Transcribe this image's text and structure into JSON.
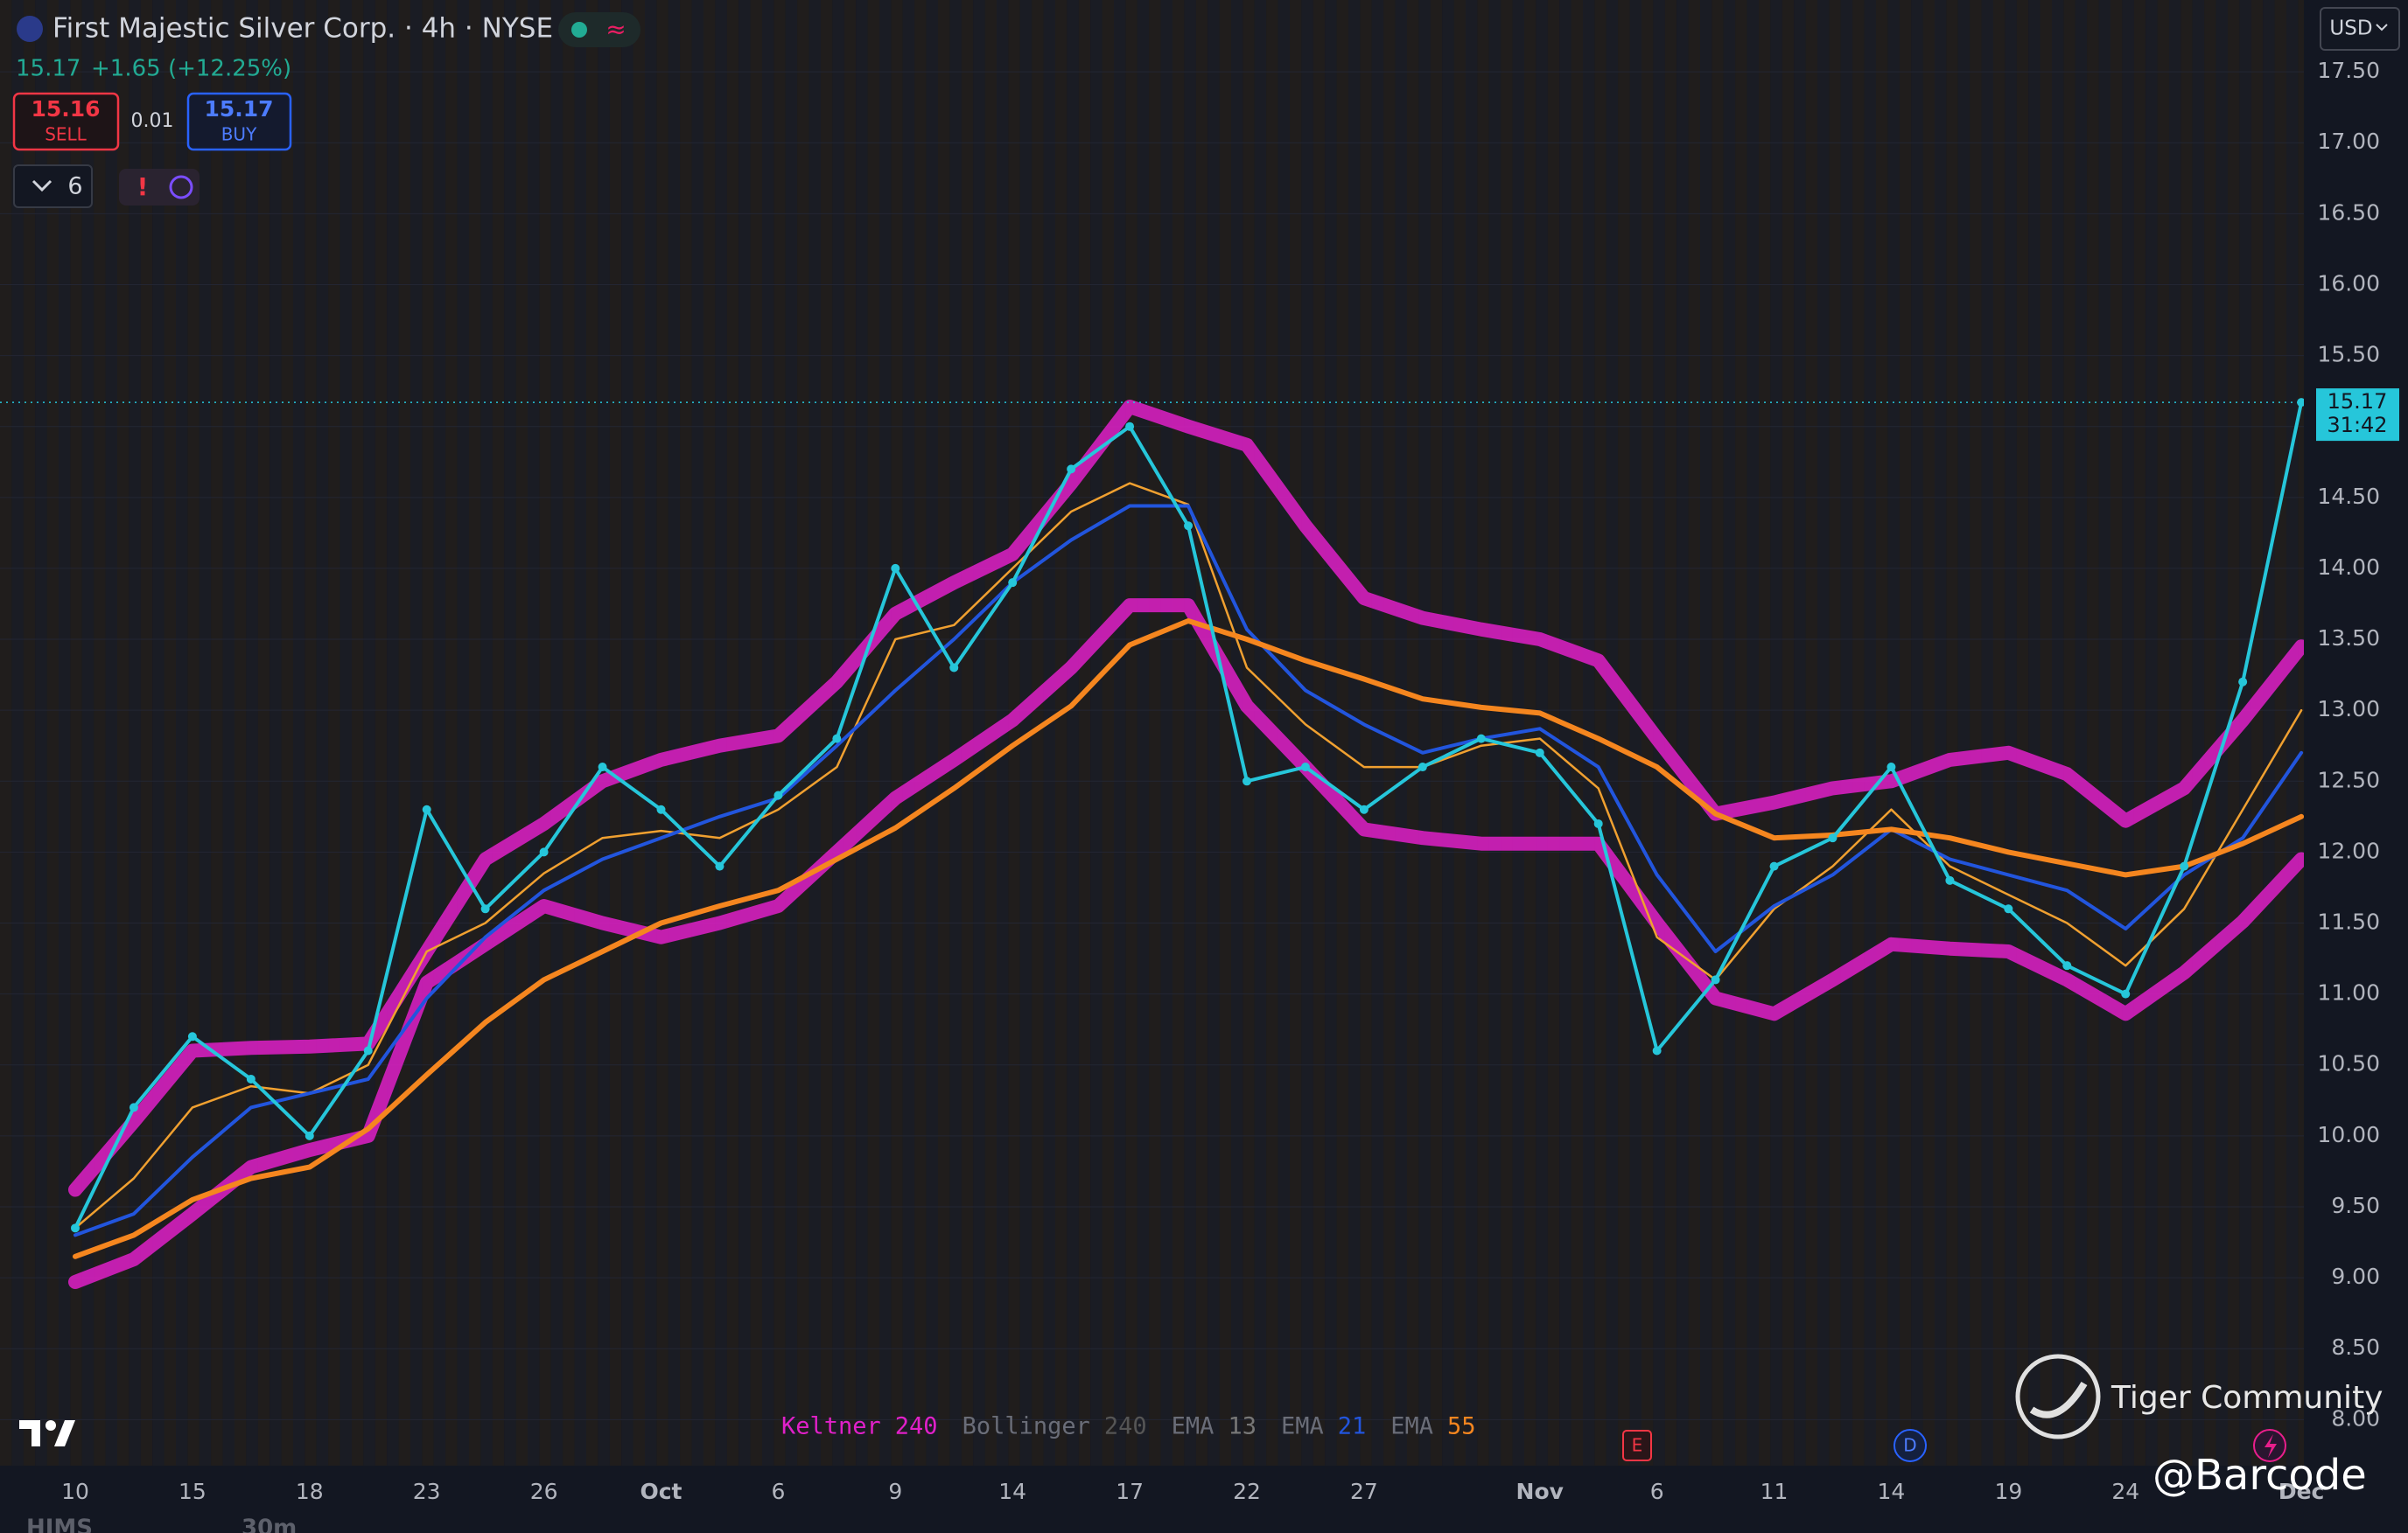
{
  "chart_data": {
    "type": "line",
    "title": "First Majestic Silver Corp. · 4h · NYSE",
    "categories": [
      "10",
      null,
      "15",
      null,
      "18",
      null,
      "23",
      null,
      "26",
      null,
      "Oct",
      null,
      "6",
      null,
      "9",
      null,
      "14",
      null,
      "17",
      null,
      "22",
      null,
      "27",
      null,
      null,
      "Nov",
      null,
      "6",
      null,
      "11",
      null,
      "14",
      null,
      "19",
      null,
      "24",
      null,
      null,
      "Dec"
    ],
    "close": [
      9.35,
      10.2,
      10.7,
      10.4,
      10.0,
      10.6,
      12.3,
      11.6,
      12.0,
      12.6,
      12.3,
      11.9,
      12.4,
      12.8,
      14.0,
      13.3,
      13.9,
      14.7,
      15.0,
      14.3,
      12.5,
      12.6,
      12.3,
      12.6,
      12.8,
      12.7,
      12.2,
      10.6,
      11.1,
      11.9,
      12.1,
      12.6,
      11.8,
      11.6,
      11.2,
      11.0,
      11.9,
      13.2,
      15.17
    ],
    "close_color": "#26c6da",
    "series": [
      {
        "name": "Keltner",
        "param": "240",
        "color": "#e020c8",
        "upper": [
          9.62,
          10.1,
          10.6,
          10.62,
          10.63,
          10.65,
          11.3,
          11.95,
          12.2,
          12.5,
          12.65,
          12.75,
          12.82,
          13.2,
          13.68,
          13.9,
          14.1,
          14.6,
          15.14,
          15.0,
          14.87,
          14.3,
          13.79,
          13.65,
          13.57,
          13.5,
          13.35,
          12.8,
          12.27,
          12.35,
          12.45,
          12.5,
          12.65,
          12.7,
          12.55,
          12.22,
          12.45,
          12.93,
          13.45
        ],
        "lower": [
          8.97,
          9.13,
          9.45,
          9.78,
          9.9,
          10.0,
          11.08,
          11.35,
          11.62,
          11.5,
          11.4,
          11.5,
          11.62,
          12.0,
          12.38,
          12.65,
          12.93,
          13.3,
          13.74,
          13.74,
          13.03,
          12.6,
          12.16,
          12.1,
          12.06,
          12.06,
          12.06,
          11.5,
          10.97,
          10.86,
          11.1,
          11.35,
          11.32,
          11.3,
          11.1,
          10.86,
          11.15,
          11.51,
          11.95
        ]
      },
      {
        "name": "Bollinger",
        "param": "240",
        "color": "#666666"
      },
      {
        "name": "EMA",
        "param": "13",
        "color": "#f0a030",
        "values": [
          9.35,
          9.7,
          10.2,
          10.35,
          10.3,
          10.5,
          11.3,
          11.5,
          11.85,
          12.1,
          12.15,
          12.1,
          12.3,
          12.6,
          13.5,
          13.6,
          14.0,
          14.4,
          14.6,
          14.45,
          13.3,
          12.9,
          12.6,
          12.6,
          12.75,
          12.8,
          12.45,
          11.4,
          11.1,
          11.6,
          11.9,
          12.3,
          11.9,
          11.7,
          11.5,
          11.2,
          11.6,
          12.3,
          13.0
        ]
      },
      {
        "name": "EMA",
        "param": "21",
        "color": "#2255dd",
        "values": [
          9.3,
          9.45,
          9.85,
          10.2,
          10.3,
          10.4,
          10.97,
          11.4,
          11.73,
          11.95,
          12.1,
          12.25,
          12.38,
          12.75,
          13.14,
          13.5,
          13.9,
          14.2,
          14.44,
          14.44,
          13.57,
          13.14,
          12.9,
          12.7,
          12.8,
          12.87,
          12.6,
          11.84,
          11.3,
          11.62,
          11.84,
          12.16,
          11.95,
          11.84,
          11.73,
          11.46,
          11.84,
          12.1,
          12.7
        ]
      },
      {
        "name": "EMA",
        "param": "55",
        "color": "#f5861f",
        "values": [
          9.15,
          9.3,
          9.55,
          9.7,
          9.78,
          10.05,
          10.43,
          10.8,
          11.1,
          11.3,
          11.5,
          11.62,
          11.73,
          11.95,
          12.17,
          12.45,
          12.75,
          13.03,
          13.46,
          13.63,
          13.5,
          13.35,
          13.22,
          13.08,
          13.02,
          12.98,
          12.8,
          12.6,
          12.27,
          12.1,
          12.12,
          12.16,
          12.1,
          12.0,
          11.92,
          11.84,
          11.9,
          12.06,
          12.25
        ]
      }
    ],
    "ylim": [
      7.7,
      18.0
    ],
    "yticks": [
      {
        "value": 8.0,
        "label": "8.00"
      },
      {
        "value": 8.5,
        "label": "8.50"
      },
      {
        "value": 9.0,
        "label": "9.00"
      },
      {
        "value": 9.5,
        "label": "9.50"
      },
      {
        "value": 10.0,
        "label": "10.00"
      },
      {
        "value": 10.5,
        "label": "10.50"
      },
      {
        "value": 11.0,
        "label": "11.00"
      },
      {
        "value": 11.5,
        "label": "11.50"
      },
      {
        "value": 12.0,
        "label": "12.00"
      },
      {
        "value": 12.5,
        "label": "12.50"
      },
      {
        "value": 13.0,
        "label": "13.00"
      },
      {
        "value": 13.5,
        "label": "13.50"
      },
      {
        "value": 14.0,
        "label": "14.00"
      },
      {
        "value": 14.5,
        "label": "14.50"
      },
      {
        "value": 15.0,
        "label": "15.00"
      },
      {
        "value": 15.5,
        "label": "15.50"
      },
      {
        "value": 16.0,
        "label": "16.00"
      },
      {
        "value": 16.5,
        "label": "16.50"
      },
      {
        "value": 17.0,
        "label": "17.00"
      },
      {
        "value": 17.5,
        "label": "17.50"
      }
    ],
    "grid": true,
    "last_price": 15.17,
    "currency": "USD"
  },
  "ui": {
    "price": "15.17",
    "change": "+1.65 (+12.25%)",
    "sell_price": "15.16",
    "sell": "SELL",
    "spread": "0.01",
    "buy_price": "15.17",
    "buy": "BUY",
    "indicators_count": "6",
    "countdown": "31:42",
    "events": [
      "E",
      "D"
    ],
    "watermark": "Tiger Community",
    "handle": "@Barcode",
    "bottom": [
      "HIMS",
      "30m"
    ]
  }
}
